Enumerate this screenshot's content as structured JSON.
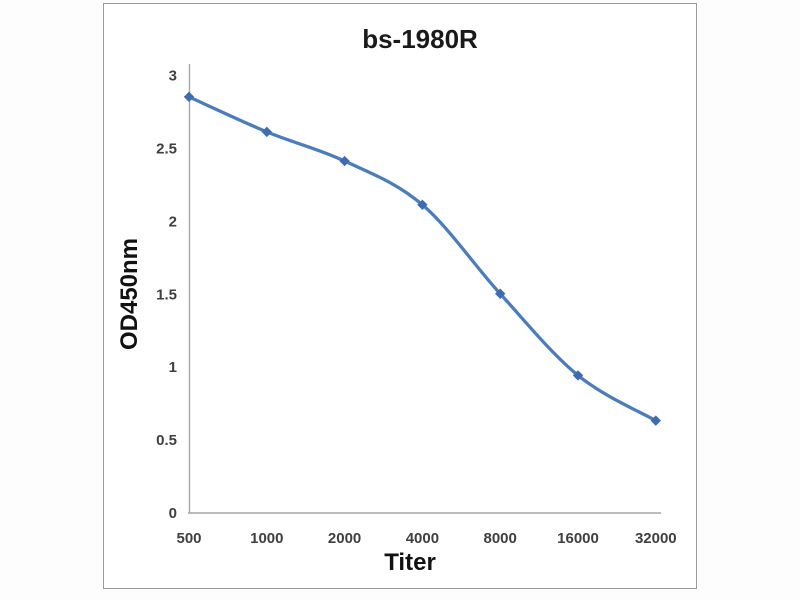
{
  "chart_data": {
    "type": "line",
    "title": "bs-1980R",
    "xlabel": "Titer",
    "ylabel": "OD450nm",
    "categories": [
      "500",
      "1000",
      "2000",
      "4000",
      "8000",
      "16000",
      "32000"
    ],
    "series": [
      {
        "name": "bs-1980R",
        "values": [
          2.85,
          2.61,
          2.41,
          2.11,
          1.5,
          0.94,
          0.63
        ]
      }
    ],
    "yticks": [
      "3",
      "2.5",
      "2",
      "1.5",
      "1",
      "0.5",
      "0"
    ],
    "ytick_values": [
      3,
      2.5,
      2,
      1.5,
      1,
      0.5,
      0
    ],
    "ylim": [
      0,
      3
    ],
    "grid": false,
    "legend": "none",
    "line_style": "smoothed",
    "marker": "diamond",
    "colors": {
      "line": "#4c7dbb",
      "marker": "#3f6cb0",
      "axis": "#a6a6a6",
      "tick_text": "#3f3f3f",
      "title_text": "#1a1a1a",
      "frame_border": "#9b9b9b",
      "background": "#ffffff"
    }
  }
}
